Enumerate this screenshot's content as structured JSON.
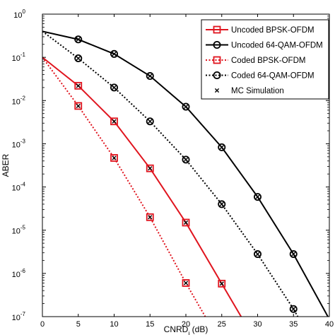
{
  "chart_data": {
    "type": "line",
    "xlabel": "CNRD",
    "xlabel_sub": "j",
    "xlabel_unit": " (dB)",
    "ylabel": "ABER",
    "xlim": [
      0,
      40
    ],
    "ylim": [
      1e-07,
      1
    ],
    "yscale": "log",
    "x_ticks": [
      0,
      5,
      10,
      15,
      20,
      25,
      30,
      35,
      40
    ],
    "y_ticks": [
      {
        "base": "10",
        "exp": "0"
      },
      {
        "base": "10",
        "exp": "-1"
      },
      {
        "base": "10",
        "exp": "-2"
      },
      {
        "base": "10",
        "exp": "-3"
      },
      {
        "base": "10",
        "exp": "-4"
      },
      {
        "base": "10",
        "exp": "-5"
      },
      {
        "base": "10",
        "exp": "-6"
      },
      {
        "base": "10",
        "exp": "-7"
      }
    ],
    "legend_position": "top-right",
    "grid": false,
    "series": [
      {
        "name": "Uncoded BPSK-OFDM",
        "color": "#e0141e",
        "line_style": "solid",
        "marker": "square",
        "x": [
          0,
          5,
          10,
          15,
          20,
          25,
          27.7
        ],
        "y": [
          0.1,
          0.022,
          0.0033,
          0.00027,
          1.5e-05,
          5.8e-07,
          1e-07
        ],
        "markers_x": [
          5,
          10,
          15,
          20,
          25
        ],
        "markers_y": [
          0.022,
          0.0033,
          0.00027,
          1.5e-05,
          5.8e-07
        ]
      },
      {
        "name": "Uncoded 64-QAM-OFDM",
        "color": "#000000",
        "line_style": "solid",
        "marker": "circle",
        "x": [
          0,
          5,
          10,
          15,
          20,
          25,
          30,
          35,
          39.8
        ],
        "y": [
          0.4,
          0.26,
          0.12,
          0.037,
          0.0072,
          0.00083,
          5.9e-05,
          2.8e-06,
          1e-07
        ],
        "markers_x": [
          5,
          10,
          15,
          20,
          25,
          30,
          35
        ],
        "markers_y": [
          0.26,
          0.12,
          0.037,
          0.0072,
          0.00083,
          5.9e-05,
          2.8e-06
        ]
      },
      {
        "name": "Coded BPSK-OFDM",
        "color": "#e0141e",
        "line_style": "dotted",
        "marker": "square",
        "x": [
          0,
          5,
          10,
          15,
          20,
          22.7
        ],
        "y": [
          0.1,
          0.0075,
          0.00047,
          2e-05,
          6e-07,
          1e-07
        ],
        "markers_x": [
          5,
          10,
          15,
          20
        ],
        "markers_y": [
          0.0075,
          0.00047,
          2e-05,
          6e-07
        ]
      },
      {
        "name": "Coded 64-QAM-OFDM",
        "color": "#000000",
        "line_style": "dotted",
        "marker": "circle",
        "x": [
          0,
          5,
          10,
          15,
          20,
          25,
          30,
          35,
          35.6
        ],
        "y": [
          0.4,
          0.095,
          0.02,
          0.0033,
          0.00043,
          4e-05,
          2.8e-06,
          1.5e-07,
          1e-07
        ],
        "markers_x": [
          5,
          10,
          15,
          20,
          25,
          30,
          35
        ],
        "markers_y": [
          0.095,
          0.02,
          0.0033,
          0.00043,
          4e-05,
          2.8e-06,
          1.5e-07
        ]
      },
      {
        "name": "MC Simulation",
        "color": "#000000",
        "line_style": "none",
        "marker": "x"
      }
    ]
  }
}
